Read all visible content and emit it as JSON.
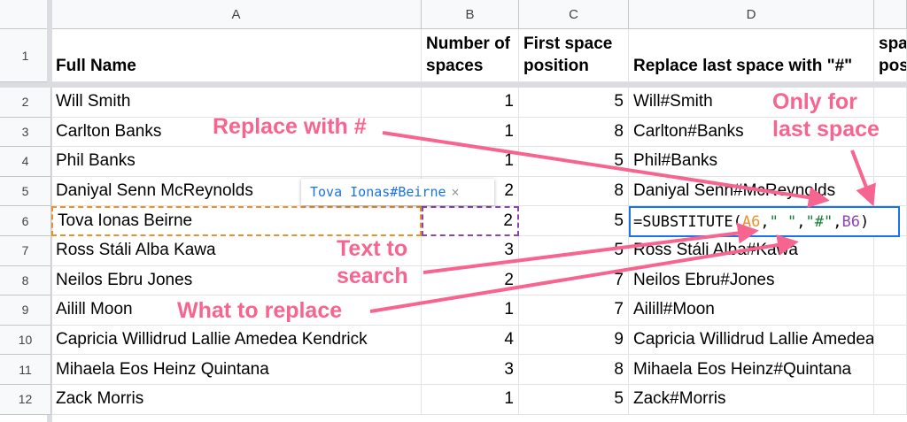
{
  "columns": [
    "A",
    "B",
    "C",
    "D",
    ""
  ],
  "headers": {
    "a": "Full Name",
    "b": "Number of spaces",
    "c": "First space position",
    "d": "Replace last space with \"#\"",
    "e": "Last space position"
  },
  "rows": [
    {
      "n": "2",
      "a": "Will Smith",
      "b": "1",
      "c": "5",
      "d": "Will#Smith"
    },
    {
      "n": "3",
      "a": "Carlton Banks",
      "b": "1",
      "c": "8",
      "d": "Carlton#Banks"
    },
    {
      "n": "4",
      "a": "Phil Banks",
      "b": "1",
      "c": "5",
      "d": "Phil#Banks"
    },
    {
      "n": "5",
      "a": "Daniyal Senn McReynolds",
      "b": "2",
      "c": "8",
      "d": "Daniyal Senn#McReynolds"
    },
    {
      "n": "6",
      "a": "Tova Ionas Beirne",
      "b": "2",
      "c": "5",
      "d": ""
    },
    {
      "n": "7",
      "a": "Ross Stáli Alba Kawa",
      "b": "3",
      "c": "5",
      "d": "Ross Stáli Alba#Kawa"
    },
    {
      "n": "8",
      "a": "Neilos Ebru Jones",
      "b": "2",
      "c": "7",
      "d": "Neilos Ebru#Jones"
    },
    {
      "n": "9",
      "a": "Ailill Moon",
      "b": "1",
      "c": "7",
      "d": "Ailill#Moon"
    },
    {
      "n": "10",
      "a": "Capricia Willidrud Lallie Amedea Kendrick",
      "b": "4",
      "c": "9",
      "d": "Capricia Willidrud Lallie Amedea#Kendrick"
    },
    {
      "n": "11",
      "a": "Mihaela Eos Heinz Quintana",
      "b": "3",
      "c": "8",
      "d": "Mihaela Eos Heinz#Quintana"
    },
    {
      "n": "12",
      "a": "Zack Morris",
      "b": "1",
      "c": "5",
      "d": "Zack#Morris"
    }
  ],
  "row1_number": "1",
  "formula": {
    "prefix": "=SUBSTITUTE(",
    "ref1": "A6",
    "s1": ",",
    "str1": "\" \"",
    "s2": ",",
    "str2": "\"#\"",
    "s3": ",",
    "ref2": "B6",
    "suffix": ")",
    "preview": "Tova Ionas#Beirne",
    "close": "×"
  },
  "colors": {
    "ref1": "#e8912d",
    "ref2": "#8e44ad",
    "string": "#188038",
    "accent": "#1a73e8",
    "annotation": "#f7648f"
  },
  "annotations": {
    "replace_with": "Replace with #",
    "last_space": "Only for\nlast space",
    "text_to_search": "Text to\nsearch",
    "what_to_replace": "What to replace"
  }
}
